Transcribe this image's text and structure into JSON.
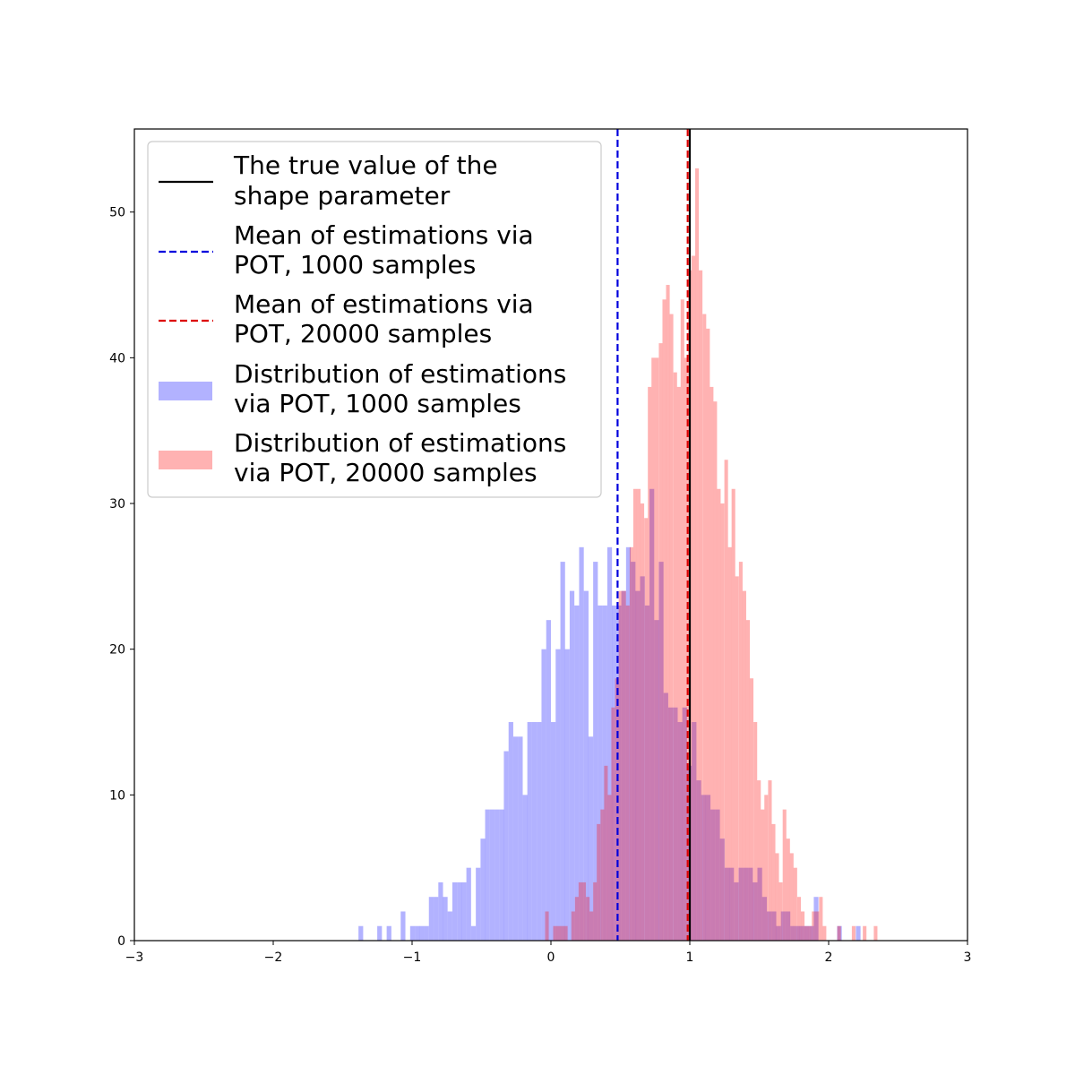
{
  "chart_data": {
    "type": "histogram",
    "title": "",
    "xlabel": "",
    "ylabel": "",
    "xlim": [
      -3,
      3
    ],
    "ylim": [
      0,
      55.7
    ],
    "xticks": [
      -3,
      -2,
      -1,
      0,
      1,
      2,
      3
    ],
    "xtick_labels": [
      "−3",
      "−2",
      "−1",
      "0",
      "1",
      "2",
      "3"
    ],
    "yticks": [
      0,
      10,
      20,
      30,
      40,
      50
    ],
    "ytick_labels": [
      "0",
      "10",
      "20",
      "30",
      "40",
      "50"
    ],
    "grid": false,
    "legend_position": "top-left",
    "vlines": [
      {
        "name": "The true value of the shape parameter",
        "x": 1.0,
        "color": "#000000",
        "style": "solid"
      },
      {
        "name": "Mean of estimations via POT, 1000 samples",
        "x": 0.48,
        "color": "#0000dd",
        "style": "dashed"
      },
      {
        "name": "Mean of estimations via POT, 20000 samples",
        "x": 0.985,
        "color": "#dd0000",
        "style": "dashed"
      }
    ],
    "series": [
      {
        "name": "Distribution of estimations via POT, 1000 samples",
        "color": "#0000ff",
        "opacity": 0.3,
        "bin_width": 0.0338,
        "bins": [
          [
            -1.386,
            1
          ],
          [
            -1.251,
            1
          ],
          [
            -1.183,
            1
          ],
          [
            -1.082,
            2
          ],
          [
            -1.014,
            1
          ],
          [
            -0.98,
            1
          ],
          [
            -0.947,
            1
          ],
          [
            -0.913,
            1
          ],
          [
            -0.879,
            3
          ],
          [
            -0.845,
            3
          ],
          [
            -0.811,
            4
          ],
          [
            -0.778,
            3
          ],
          [
            -0.744,
            2
          ],
          [
            -0.71,
            4
          ],
          [
            -0.676,
            4
          ],
          [
            -0.643,
            4
          ],
          [
            -0.609,
            5
          ],
          [
            -0.575,
            1
          ],
          [
            -0.541,
            5
          ],
          [
            -0.507,
            7
          ],
          [
            -0.474,
            9
          ],
          [
            -0.44,
            9
          ],
          [
            -0.406,
            9
          ],
          [
            -0.372,
            9
          ],
          [
            -0.339,
            13
          ],
          [
            -0.305,
            15
          ],
          [
            -0.271,
            14
          ],
          [
            -0.237,
            14
          ],
          [
            -0.203,
            10
          ],
          [
            -0.17,
            15
          ],
          [
            -0.136,
            15
          ],
          [
            -0.102,
            15
          ],
          [
            -0.068,
            20
          ],
          [
            -0.034,
            22
          ],
          [
            0.0,
            15
          ],
          [
            0.034,
            20
          ],
          [
            0.068,
            26
          ],
          [
            0.101,
            20
          ],
          [
            0.135,
            24
          ],
          [
            0.169,
            23
          ],
          [
            0.203,
            27
          ],
          [
            0.237,
            24
          ],
          [
            0.27,
            14
          ],
          [
            0.304,
            26
          ],
          [
            0.338,
            23
          ],
          [
            0.372,
            23
          ],
          [
            0.406,
            27
          ],
          [
            0.439,
            23
          ],
          [
            0.473,
            23
          ],
          [
            0.507,
            24
          ],
          [
            0.541,
            27
          ],
          [
            0.575,
            26
          ],
          [
            0.608,
            24
          ],
          [
            0.642,
            25
          ],
          [
            0.676,
            23
          ],
          [
            0.71,
            31
          ],
          [
            0.744,
            22
          ],
          [
            0.777,
            26
          ],
          [
            0.811,
            17
          ],
          [
            0.845,
            16
          ],
          [
            0.879,
            16
          ],
          [
            0.913,
            15
          ],
          [
            0.946,
            16
          ],
          [
            0.98,
            12
          ],
          [
            1.014,
            15
          ],
          [
            1.048,
            11
          ],
          [
            1.082,
            10
          ],
          [
            1.115,
            10
          ],
          [
            1.149,
            9
          ],
          [
            1.183,
            9
          ],
          [
            1.217,
            7
          ],
          [
            1.251,
            5
          ],
          [
            1.284,
            5
          ],
          [
            1.318,
            4
          ],
          [
            1.352,
            5
          ],
          [
            1.386,
            5
          ],
          [
            1.42,
            5
          ],
          [
            1.453,
            4
          ],
          [
            1.487,
            5
          ],
          [
            1.521,
            3
          ],
          [
            1.555,
            2
          ],
          [
            1.589,
            2
          ],
          [
            1.622,
            1
          ],
          [
            1.656,
            2
          ],
          [
            1.69,
            2
          ],
          [
            1.724,
            1
          ],
          [
            1.758,
            1
          ],
          [
            1.791,
            1
          ],
          [
            1.825,
            1
          ],
          [
            1.859,
            1
          ],
          [
            1.893,
            3
          ],
          [
            2.061,
            1
          ],
          [
            2.196,
            1
          ]
        ]
      },
      {
        "name": "Distribution of estimations via POT, 20000 samples",
        "color": "#ff0000",
        "opacity": 0.3,
        "bin_width": 0.0263,
        "bins": [
          [
            -0.042,
            2
          ],
          [
            0.016,
            1
          ],
          [
            0.042,
            1
          ],
          [
            0.068,
            1
          ],
          [
            0.094,
            1
          ],
          [
            0.147,
            2
          ],
          [
            0.173,
            3
          ],
          [
            0.199,
            4
          ],
          [
            0.225,
            4
          ],
          [
            0.252,
            3
          ],
          [
            0.278,
            2
          ],
          [
            0.304,
            4
          ],
          [
            0.33,
            8
          ],
          [
            0.357,
            9
          ],
          [
            0.383,
            12
          ],
          [
            0.409,
            10
          ],
          [
            0.435,
            16
          ],
          [
            0.462,
            18
          ],
          [
            0.488,
            24
          ],
          [
            0.514,
            24
          ],
          [
            0.54,
            23
          ],
          [
            0.567,
            27
          ],
          [
            0.593,
            31
          ],
          [
            0.619,
            31
          ],
          [
            0.645,
            30
          ],
          [
            0.672,
            29
          ],
          [
            0.698,
            38
          ],
          [
            0.724,
            40
          ],
          [
            0.75,
            40
          ],
          [
            0.777,
            41
          ],
          [
            0.803,
            44
          ],
          [
            0.829,
            45
          ],
          [
            0.855,
            43
          ],
          [
            0.882,
            39
          ],
          [
            0.908,
            38
          ],
          [
            0.934,
            44
          ],
          [
            0.96,
            40
          ],
          [
            0.987,
            46
          ],
          [
            1.013,
            47
          ],
          [
            1.039,
            53
          ],
          [
            1.065,
            46
          ],
          [
            1.092,
            43
          ],
          [
            1.118,
            42
          ],
          [
            1.144,
            38
          ],
          [
            1.17,
            37
          ],
          [
            1.196,
            31
          ],
          [
            1.222,
            30
          ],
          [
            1.249,
            33
          ],
          [
            1.275,
            27
          ],
          [
            1.301,
            31
          ],
          [
            1.327,
            25
          ],
          [
            1.354,
            26
          ],
          [
            1.38,
            24
          ],
          [
            1.406,
            22
          ],
          [
            1.432,
            18
          ],
          [
            1.459,
            15
          ],
          [
            1.485,
            11
          ],
          [
            1.511,
            9
          ],
          [
            1.537,
            10
          ],
          [
            1.564,
            11
          ],
          [
            1.59,
            8
          ],
          [
            1.616,
            6
          ],
          [
            1.642,
            4
          ],
          [
            1.669,
            9
          ],
          [
            1.695,
            7
          ],
          [
            1.721,
            6
          ],
          [
            1.747,
            5
          ],
          [
            1.774,
            3
          ],
          [
            1.8,
            2
          ],
          [
            1.826,
            1
          ],
          [
            1.852,
            1
          ],
          [
            1.879,
            2
          ],
          [
            1.905,
            2
          ],
          [
            1.931,
            3
          ],
          [
            1.957,
            1
          ],
          [
            2.062,
            1
          ],
          [
            2.167,
            1
          ],
          [
            2.246,
            1
          ],
          [
            2.325,
            1
          ]
        ]
      }
    ]
  },
  "legend": {
    "items": [
      {
        "line1": "The true value of the",
        "line2": "shape parameter"
      },
      {
        "line1": "Mean of estimations via",
        "line2": "POT, 1000 samples"
      },
      {
        "line1": "Mean of estimations via",
        "line2": "POT, 20000 samples"
      },
      {
        "line1": "Distribution of estimations",
        "line2": "via POT, 1000 samples"
      },
      {
        "line1": "Distribution of estimations",
        "line2": "via POT, 20000 samples"
      }
    ]
  }
}
